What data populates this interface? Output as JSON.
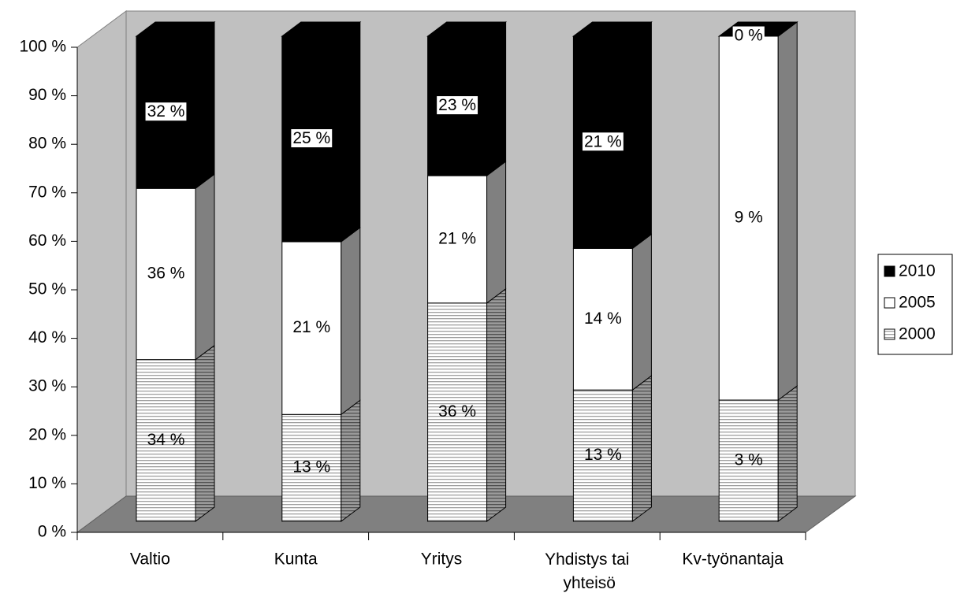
{
  "chart_data": {
    "type": "stacked-percent-bar-3d",
    "categories": [
      "Valtio",
      "Kunta",
      "Yritys",
      "Yhdistys tai yhteisö",
      "Kv-työnantaja"
    ],
    "series": [
      {
        "name": "2000",
        "color": "#d9d9d9",
        "values": [
          34,
          13,
          36,
          13,
          3
        ],
        "value_labels": [
          "34 %",
          "13 %",
          "36 %",
          "13 %",
          "3 %"
        ]
      },
      {
        "name": "2005",
        "color": "#ffffff",
        "values": [
          36,
          21,
          21,
          14,
          9
        ],
        "value_labels": [
          "36 %",
          "21 %",
          "21 %",
          "14 %",
          "9 %"
        ]
      },
      {
        "name": "2010",
        "color": "#000000",
        "values": [
          32,
          25,
          23,
          21,
          0
        ],
        "value_labels": [
          "32 %",
          "25 %",
          "23 %",
          "21 %",
          "0 %"
        ]
      }
    ],
    "ylim": [
      0,
      100
    ],
    "yticks": [
      {
        "value": 0,
        "label": "0 %"
      },
      {
        "value": 10,
        "label": "10 %"
      },
      {
        "value": 20,
        "label": "20 %"
      },
      {
        "value": 30,
        "label": "30 %"
      },
      {
        "value": 40,
        "label": "40 %"
      },
      {
        "value": 50,
        "label": "50 %"
      },
      {
        "value": 60,
        "label": "60 %"
      },
      {
        "value": 70,
        "label": "70 %"
      },
      {
        "value": 80,
        "label": "80 %"
      },
      {
        "value": 90,
        "label": "90 %"
      },
      {
        "value": 100,
        "label": "100 %"
      }
    ],
    "legend": "right"
  }
}
